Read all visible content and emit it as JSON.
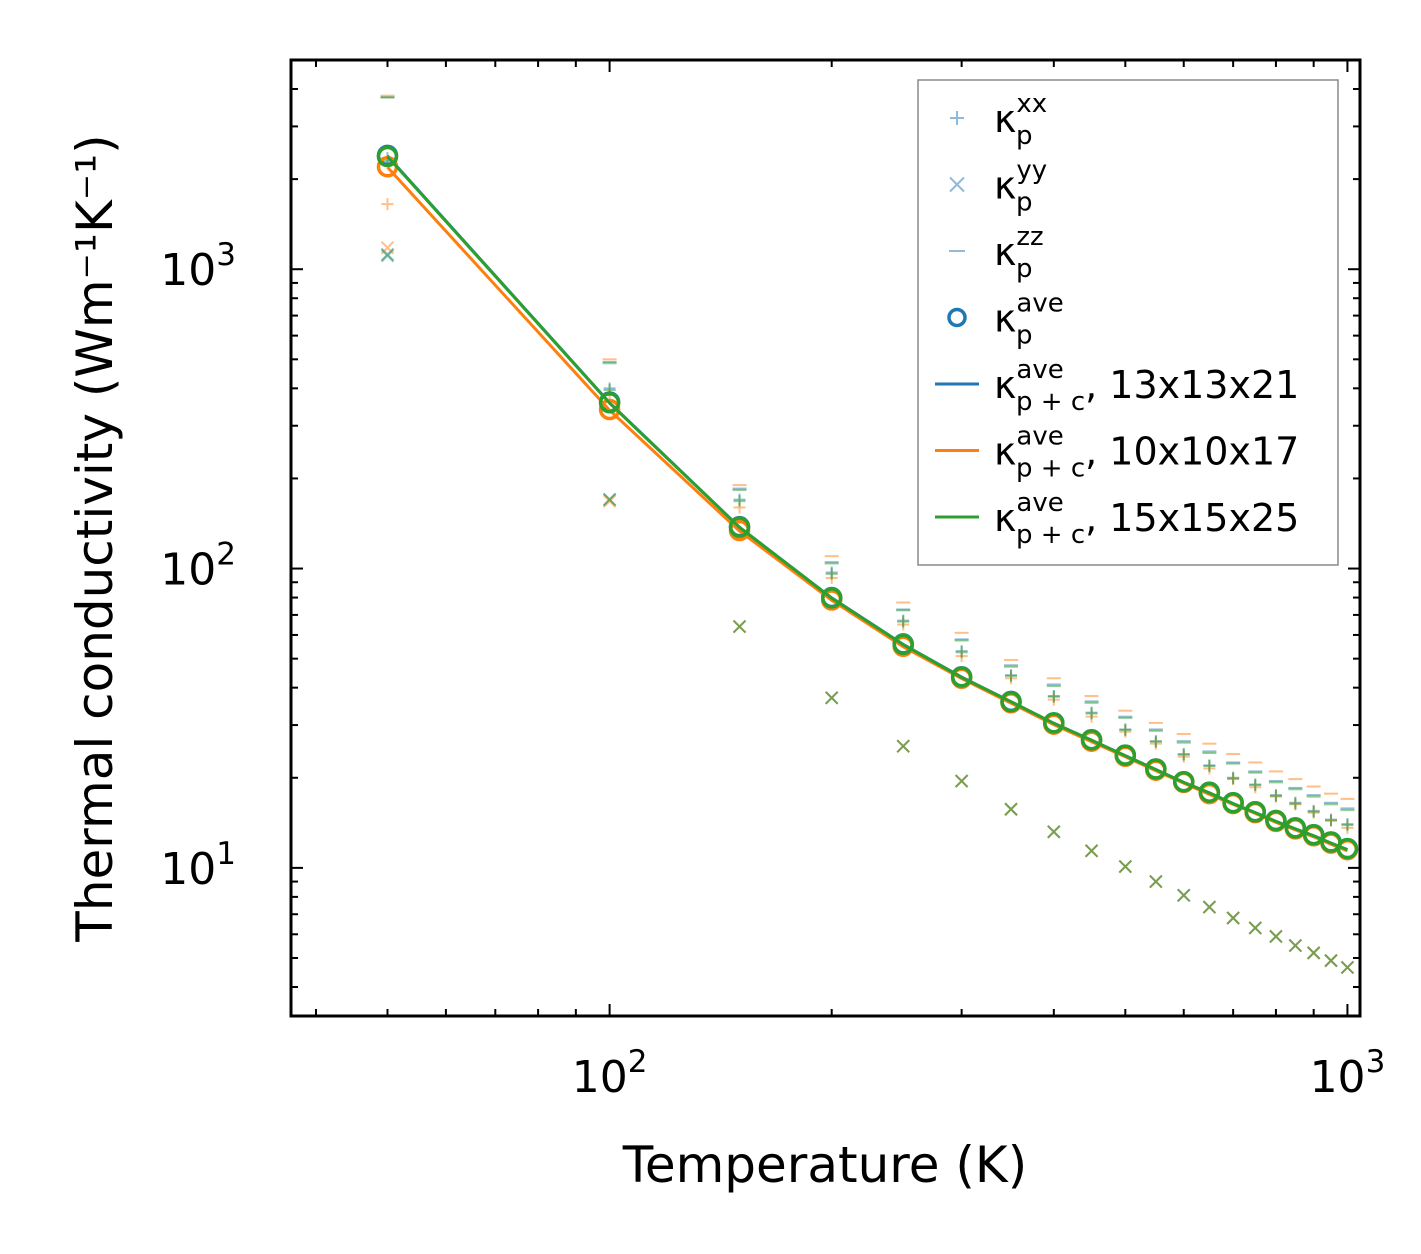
{
  "chart_data": {
    "type": "scatter",
    "scale": {
      "x": "log",
      "y": "log"
    },
    "xlabel": "Temperature (K)",
    "ylabel": "Thermal conductivity (Wm⁻¹K⁻¹)",
    "xlim": [
      37,
      1040
    ],
    "ylim": [
      3.2,
      5000
    ],
    "x_ticks": [
      {
        "base": "10",
        "exp": "2",
        "value": 100
      },
      {
        "base": "10",
        "exp": "3",
        "value": 1000
      }
    ],
    "y_ticks": [
      {
        "base": "10",
        "exp": "1",
        "value": 10
      },
      {
        "base": "10",
        "exp": "2",
        "value": 100
      },
      {
        "base": "10",
        "exp": "3",
        "value": 1000
      }
    ],
    "x": [
      50,
      100,
      150,
      200,
      250,
      300,
      350,
      400,
      450,
      500,
      550,
      600,
      650,
      700,
      750,
      800,
      850,
      900,
      950,
      1000
    ],
    "legend": [
      {
        "label": "κ",
        "sub": "p",
        "sup": "xx",
        "suffix": "",
        "marker": "plus",
        "color": "#1f77b4"
      },
      {
        "label": "κ",
        "sub": "p",
        "sup": "yy",
        "suffix": "",
        "marker": "x",
        "color": "#1f77b4"
      },
      {
        "label": "κ",
        "sub": "p",
        "sup": "zz",
        "suffix": "",
        "marker": "hline",
        "color": "#1f77b4"
      },
      {
        "label": "κ",
        "sub": "p",
        "sup": "ave",
        "suffix": "",
        "marker": "circle",
        "color": "#1f77b4"
      },
      {
        "label": "κ",
        "sub": "p + c",
        "sup": "ave",
        "suffix": ", 13x13x21",
        "marker": "line",
        "color": "#1f77b4"
      },
      {
        "label": "κ",
        "sub": "p + c",
        "sup": "ave",
        "suffix": ", 10x10x17",
        "marker": "line",
        "color": "#ff7f0e"
      },
      {
        "label": "κ",
        "sub": "p + c",
        "sup": "ave",
        "suffix": ", 15x15x25",
        "marker": "line",
        "color": "#2ca02c"
      }
    ],
    "series": [
      {
        "name": "13x13x21",
        "color": "#1f77b4",
        "kxx": [
          2350,
          400,
          170,
          97,
          67,
          53,
          44,
          37.5,
          33,
          29,
          26.5,
          24,
          22,
          20,
          19,
          17.5,
          16.5,
          15.5,
          14.5,
          14
        ],
        "kyy": [
          1120,
          170,
          64,
          37,
          25.5,
          19.5,
          15.7,
          13.2,
          11.4,
          10.1,
          9,
          8.1,
          7.4,
          6.8,
          6.3,
          5.9,
          5.5,
          5.2,
          4.9,
          4.65
        ],
        "kzz": [
          3750,
          490,
          185,
          105,
          73,
          58,
          47.5,
          41,
          36,
          32,
          29,
          26.5,
          24.5,
          22.5,
          21,
          19.5,
          18.5,
          17.5,
          16.5,
          15.8
        ],
        "kave": [
          2400,
          360,
          138,
          80,
          56,
          43.5,
          36,
          30.5,
          26.8,
          23.8,
          21.4,
          19.4,
          17.9,
          16.5,
          15.4,
          14.4,
          13.6,
          12.9,
          12.2,
          11.6
        ],
        "kpc": [
          2390,
          358,
          137.5,
          79.8,
          55.8,
          43.4,
          35.9,
          30.4,
          26.7,
          23.7,
          21.3,
          19.3,
          17.8,
          16.4,
          15.3,
          14.3,
          13.5,
          12.8,
          12.1,
          11.5
        ]
      },
      {
        "name": "10x10x17",
        "color": "#ff7f0e",
        "kxx": [
          1650,
          380,
          160,
          93,
          65,
          51,
          43,
          36.5,
          32,
          28.5,
          26,
          23.5,
          21.5,
          19.8,
          18.6,
          17.3,
          16.3,
          15.3,
          14.4,
          13.6
        ],
        "kyy": [
          1180,
          168,
          64,
          37,
          25.5,
          19.5,
          15.7,
          13.2,
          11.4,
          10.1,
          9,
          8.1,
          7.4,
          6.8,
          6.3,
          5.9,
          5.5,
          5.2,
          4.9,
          4.65
        ],
        "kzz": [
          3800,
          500,
          190,
          110,
          77,
          61,
          49.5,
          43,
          37.5,
          33.5,
          30.5,
          28,
          26,
          24,
          22.5,
          21,
          19.8,
          18.7,
          17.7,
          17
        ],
        "kave": [
          2200,
          340,
          134,
          78.5,
          55,
          43,
          35.6,
          30.2,
          26.5,
          23.6,
          21.2,
          19.3,
          17.7,
          16.4,
          15.3,
          14.3,
          13.5,
          12.8,
          12.1,
          11.5
        ],
        "kpc": [
          2190,
          338,
          133.5,
          78.3,
          54.8,
          42.9,
          35.5,
          30.1,
          26.4,
          23.5,
          21.1,
          19.2,
          17.6,
          16.3,
          15.2,
          14.2,
          13.4,
          12.7,
          12,
          11.4
        ]
      },
      {
        "name": "15x15x25",
        "color": "#2ca02c",
        "kxx": [
          2300,
          395,
          168,
          96,
          66.5,
          52.5,
          43.8,
          37.3,
          32.8,
          28.9,
          26.4,
          23.9,
          21.9,
          19.9,
          18.9,
          17.4,
          16.4,
          15.4,
          14.4,
          13.9
        ],
        "kyy": [
          1110,
          170,
          64,
          37,
          25.5,
          19.5,
          15.7,
          13.2,
          11.4,
          10.1,
          9,
          8.1,
          7.4,
          6.8,
          6.3,
          5.9,
          5.5,
          5.2,
          4.9,
          4.65
        ],
        "kzz": [
          3750,
          485,
          183,
          104,
          72.5,
          57.5,
          47,
          40.5,
          35.6,
          31.7,
          28.7,
          26.2,
          24.2,
          22.3,
          20.8,
          19.3,
          18.3,
          17.3,
          16.3,
          15.6
        ],
        "kave": [
          2380,
          358,
          137.5,
          79.8,
          55.8,
          43.4,
          35.9,
          30.5,
          26.8,
          23.8,
          21.4,
          19.4,
          17.9,
          16.5,
          15.4,
          14.4,
          13.6,
          12.9,
          12.2,
          11.6
        ],
        "kpc": [
          2380,
          357,
          137.2,
          79.6,
          55.7,
          43.3,
          35.9,
          30.4,
          26.7,
          23.7,
          21.3,
          19.3,
          17.8,
          16.4,
          15.3,
          14.3,
          13.5,
          12.8,
          12.1,
          11.5
        ]
      }
    ]
  }
}
